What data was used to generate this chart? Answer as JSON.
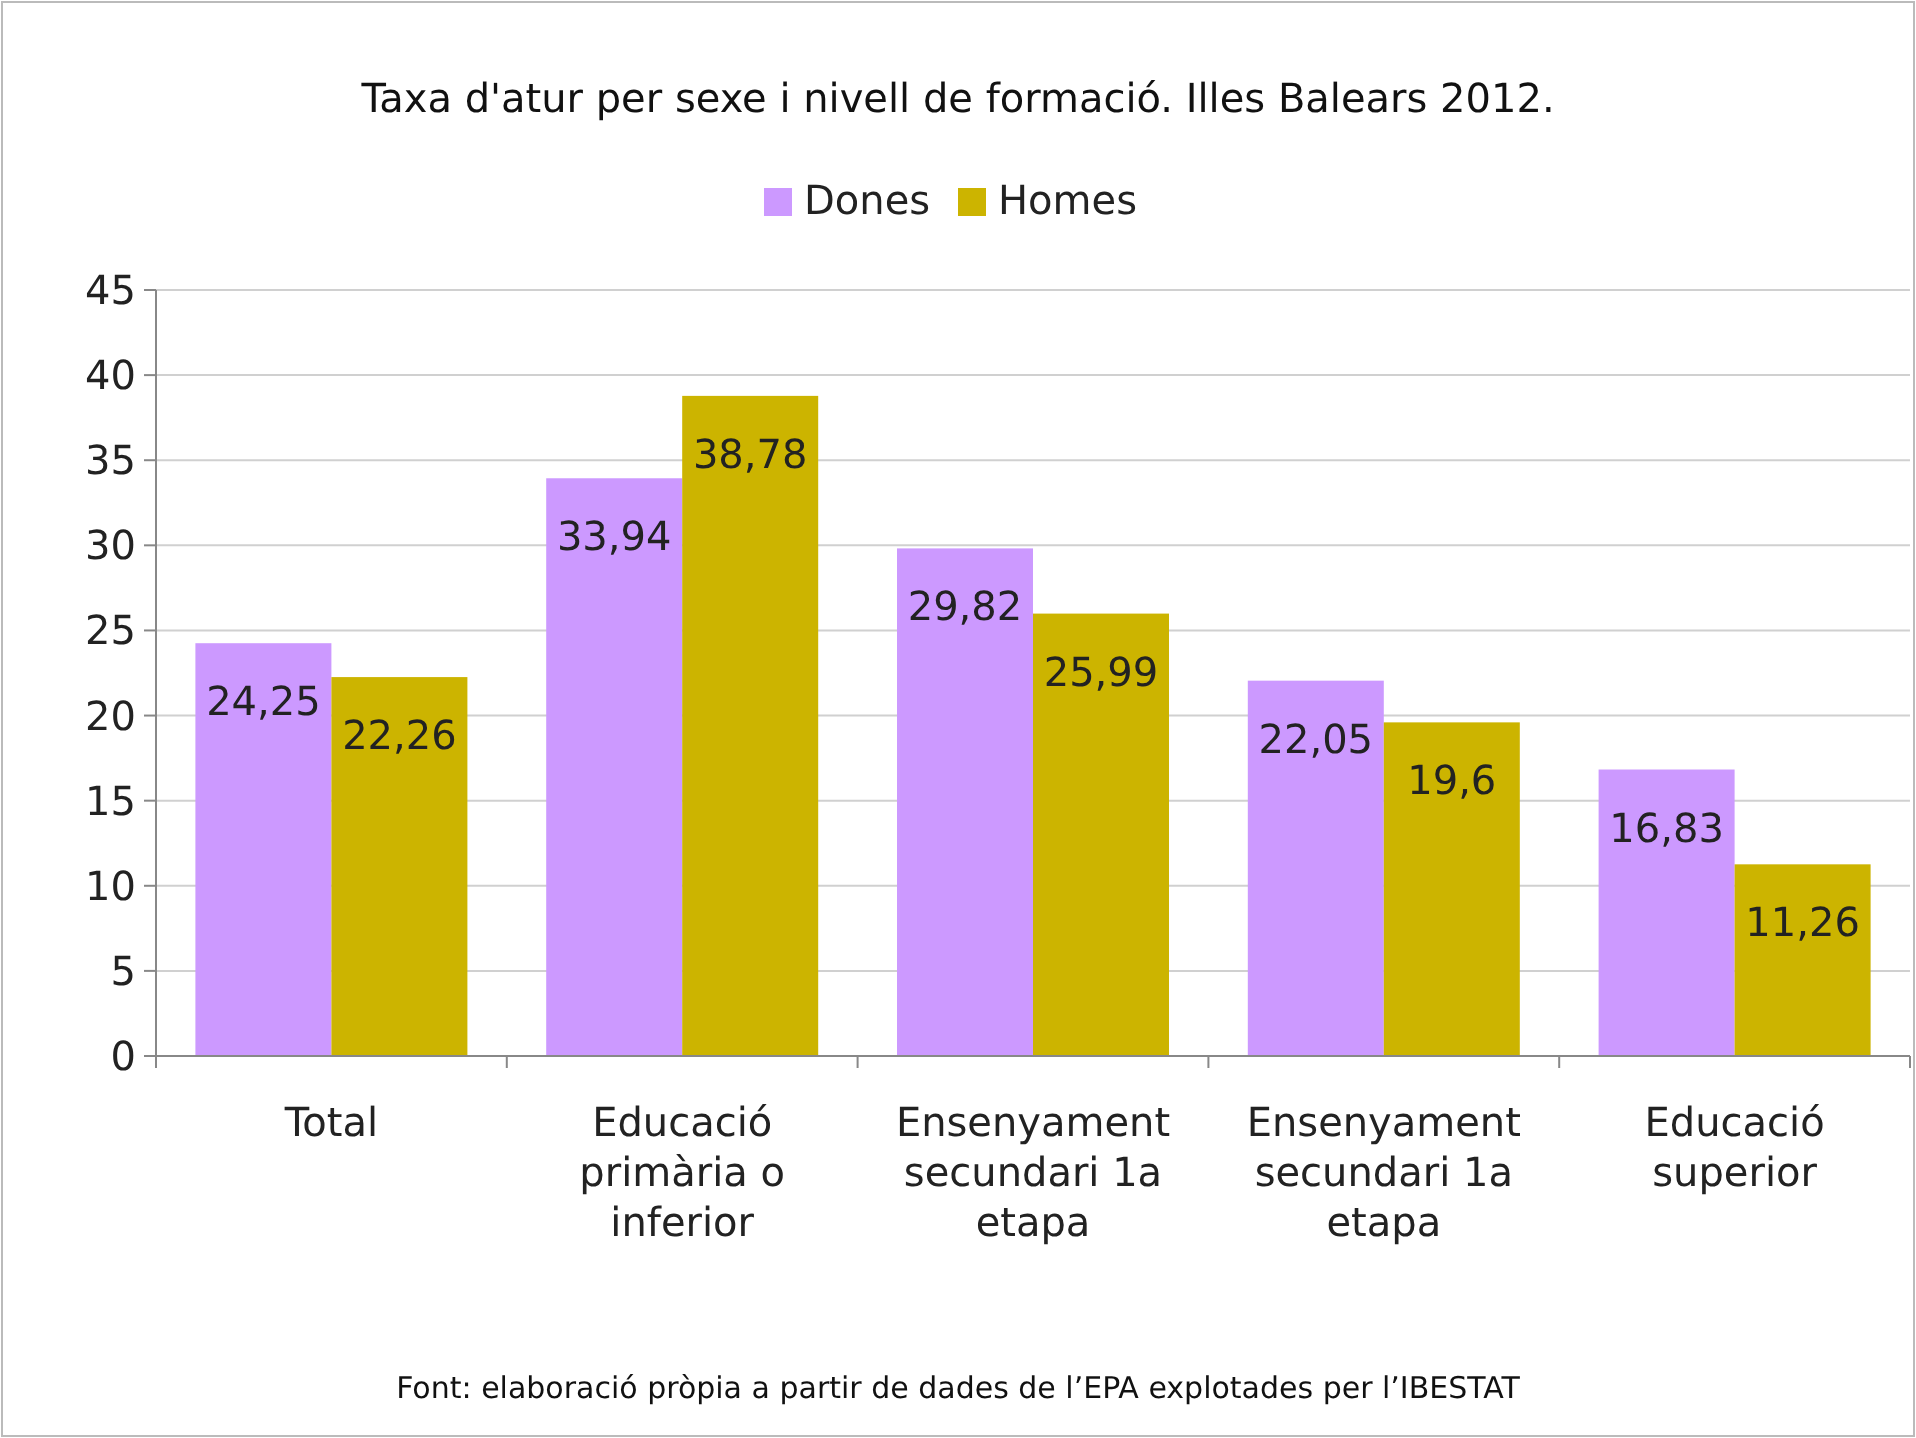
{
  "chart_data": {
    "type": "bar",
    "title": "Taxa d'atur per sexe i nivell de formació. Illes Balears 2012.",
    "categories": [
      "Total",
      "Educació primària o inferior",
      "Ensenyament secundari 1a etapa",
      "Ensenyament secundari 1a etapa",
      "Educació superior"
    ],
    "series": [
      {
        "name": "Dones",
        "color": "#cc99ff",
        "values": [
          24.25,
          33.94,
          29.82,
          22.05,
          16.83
        ],
        "value_labels": [
          "24,25",
          "33,94",
          "29,82",
          "22,05",
          "16,83"
        ]
      },
      {
        "name": "Homes",
        "color": "#ccb400",
        "values": [
          22.26,
          38.78,
          25.99,
          19.6,
          11.26
        ],
        "value_labels": [
          "22,26",
          "38,78",
          "25,99",
          "19,6",
          "11,26"
        ]
      }
    ],
    "ylim": [
      0,
      45
    ],
    "yticks": [
      0,
      5,
      10,
      15,
      20,
      25,
      30,
      35,
      40,
      45
    ],
    "grid": "y",
    "legend": "top",
    "annotations": [
      "Font:  elaboració pròpia a partir de dades de l’EPA explotades per l’IBESTAT"
    ]
  }
}
